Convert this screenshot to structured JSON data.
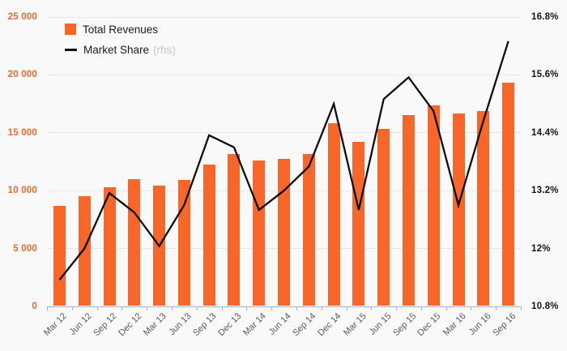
{
  "chart_data": {
    "type": "bar",
    "title": "",
    "categories": [
      "Mar 12",
      "Jun 12",
      "Sep 12",
      "Dec 12",
      "Mar 13",
      "Jun 13",
      "Sep 13",
      "Dec 13",
      "Mar 14",
      "Jun 14",
      "Sep 14",
      "Dec 14",
      "Mar 15",
      "Jun 15",
      "Sep 15",
      "Dec 15",
      "Mar 16",
      "Jun 16",
      "Sep 16"
    ],
    "series": [
      {
        "name": "Total Revenues",
        "type": "bar",
        "axis": "left",
        "values": [
          8700,
          9550,
          10300,
          11000,
          10450,
          10900,
          12250,
          13150,
          12600,
          12750,
          13150,
          15800,
          14200,
          15350,
          16550,
          17350,
          16650,
          16850,
          19350
        ]
      },
      {
        "name": "Market Share",
        "type": "line",
        "axis": "right",
        "axis_note": "(rhs)",
        "values": [
          11.35,
          12.0,
          13.15,
          12.75,
          12.05,
          12.9,
          14.35,
          14.1,
          12.8,
          13.2,
          13.7,
          15.0,
          12.8,
          15.1,
          15.55,
          14.85,
          12.9,
          14.65,
          16.3
        ]
      }
    ],
    "left_axis": {
      "min": 0,
      "max": 25000,
      "tick_labels": [
        "25 000",
        "20 000",
        "15 000",
        "10 000",
        "5 000",
        "0"
      ],
      "tick_values": [
        25000,
        20000,
        15000,
        10000,
        5000,
        0
      ]
    },
    "right_axis": {
      "min": 10.8,
      "max": 16.8,
      "tick_labels": [
        "16.8%",
        "15.6%",
        "14.4%",
        "13.2%",
        "12%",
        "10.8%"
      ],
      "tick_values": [
        16.8,
        15.6,
        14.4,
        13.2,
        12.0,
        10.8
      ]
    },
    "legend_position": "top-left",
    "grid": true
  },
  "colors": {
    "background": "#f9f9f9",
    "bar_orange": "#f9662a",
    "line_black": "#0d0d0d",
    "gridline": "#e8e8e8",
    "axis_line": "#a9b3cf",
    "x_label": "#5a5a5a",
    "left_label": "#f9662a",
    "right_label": "#151515",
    "rhs_muted": "#c6c6c6"
  }
}
